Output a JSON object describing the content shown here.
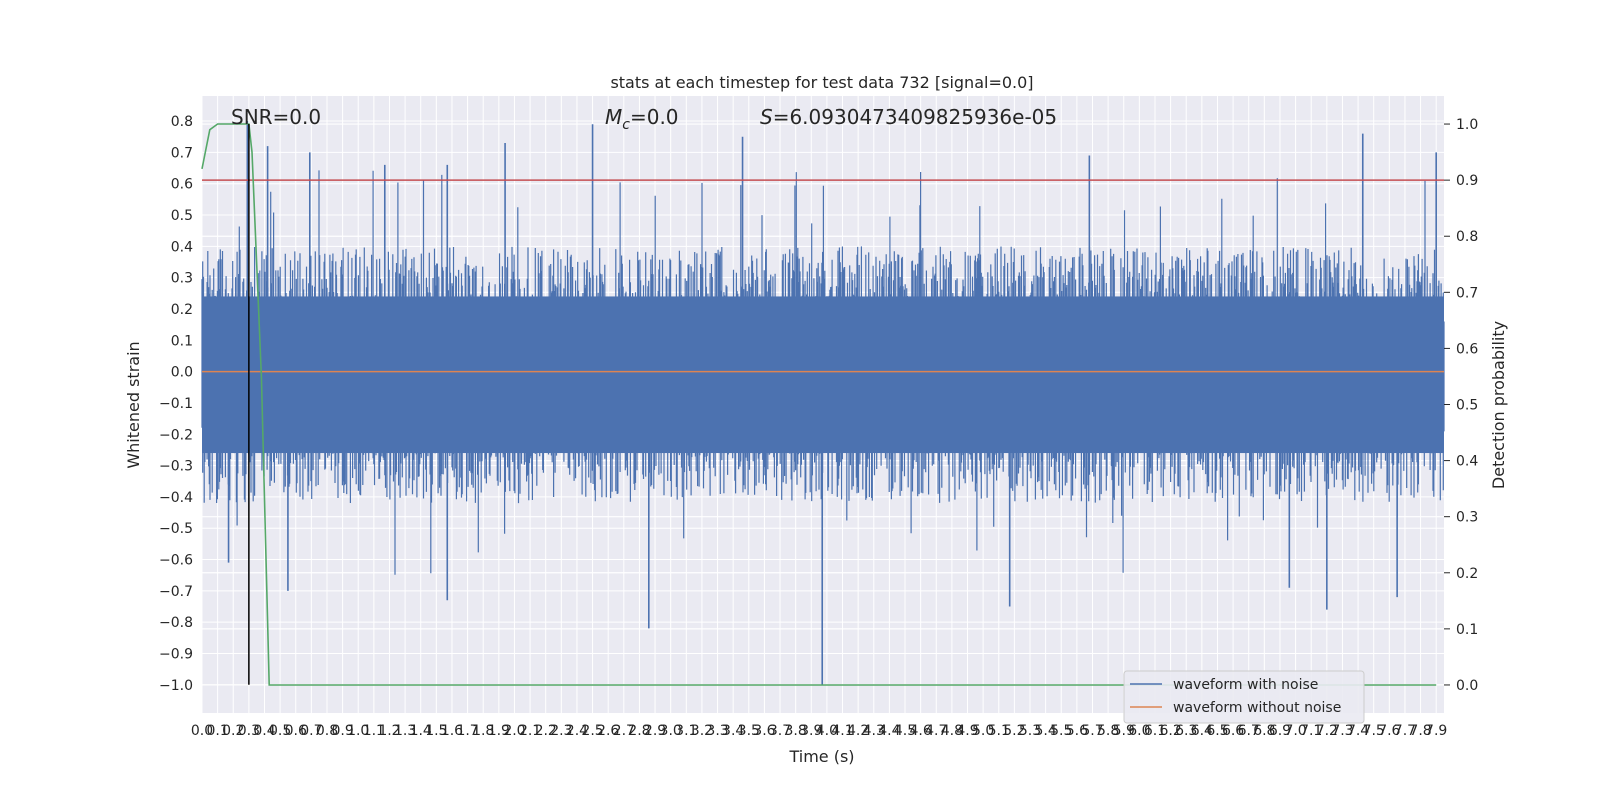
{
  "chart_data": {
    "type": "line",
    "title": "stats at each timestep for test data 732 [signal=0.0]",
    "xlabel": "Time (s)",
    "ylabel": "Whitened strain",
    "y2label": "Detection probability",
    "xlim": [
      0.0,
      7.95
    ],
    "ylim": [
      -1.09,
      0.88
    ],
    "y2lim": [
      -0.05,
      1.05
    ],
    "x_ticks": [
      "0.0",
      "0.1",
      "0.2",
      "0.3",
      "0.4",
      "0.5",
      "0.6",
      "0.7",
      "0.8",
      "0.9",
      "1.0",
      "1.1",
      "1.2",
      "1.3",
      "1.4",
      "1.5",
      "1.6",
      "1.7",
      "1.8",
      "1.9",
      "2.0",
      "2.1",
      "2.2",
      "2.3",
      "2.4",
      "2.5",
      "2.6",
      "2.7",
      "2.8",
      "2.9",
      "3.0",
      "3.1",
      "3.2",
      "3.3",
      "3.4",
      "3.5",
      "3.6",
      "3.7",
      "3.8",
      "3.9",
      "4.0",
      "4.1",
      "4.2",
      "4.3",
      "4.4",
      "4.5",
      "4.6",
      "4.7",
      "4.8",
      "4.9",
      "5.0",
      "5.1",
      "5.2",
      "5.3",
      "5.4",
      "5.5",
      "5.6",
      "5.7",
      "5.8",
      "5.9",
      "6.0",
      "6.1",
      "6.2",
      "6.3",
      "6.4",
      "6.5",
      "6.6",
      "6.7",
      "6.8",
      "6.9",
      "7.0",
      "7.1",
      "7.2",
      "7.3",
      "7.4",
      "7.5",
      "7.6",
      "7.7",
      "7.8",
      "7.9"
    ],
    "y_ticks": [
      "0.8",
      "0.7",
      "0.6",
      "0.5",
      "0.4",
      "0.3",
      "0.2",
      "0.1",
      "0.0",
      "−0.1",
      "−0.2",
      "−0.3",
      "−0.4",
      "−0.5",
      "−0.6",
      "−0.7",
      "−0.8",
      "−0.9",
      "−1.0"
    ],
    "y2_ticks": [
      "1.0",
      "0.9",
      "0.8",
      "0.7",
      "0.6",
      "0.5",
      "0.4",
      "0.3",
      "0.2",
      "0.1",
      "0.0"
    ],
    "annotations": {
      "snr": "SNR=0.0",
      "mc_symbol": "M",
      "mc_sub": "c",
      "mc_value": "=0.0",
      "s_symbol": "S",
      "s_value": "=6.0930473409825936e-05"
    },
    "threshold_y2": 0.9,
    "marker_x": 0.3,
    "grid": true,
    "legend_position": "lower-right",
    "legend": [
      "waveform with noise",
      "waveform without noise"
    ],
    "colors": {
      "noise": "#4c72b0",
      "clean": "#dd8452",
      "probability": "#55a868",
      "threshold": "#c44e52",
      "marker": "#000000",
      "background": "#eaeaf2",
      "grid": "#ffffff"
    },
    "series": [
      {
        "name": "waveform with noise",
        "description_visible": "dense noisy whitened strain, mostly within ±0.45, occasional spikes",
        "peak_points": [
          {
            "x": 0.29,
            "y": 0.8
          },
          {
            "x": 0.42,
            "y": 0.72
          },
          {
            "x": 0.69,
            "y": 0.7
          },
          {
            "x": 1.17,
            "y": 0.66
          },
          {
            "x": 1.57,
            "y": 0.66
          },
          {
            "x": 1.94,
            "y": 0.73
          },
          {
            "x": 2.5,
            "y": 0.79
          },
          {
            "x": 3.46,
            "y": 0.75
          },
          {
            "x": 5.68,
            "y": 0.69
          },
          {
            "x": 7.43,
            "y": 0.76
          },
          {
            "x": 7.9,
            "y": 0.7
          },
          {
            "x": 0.17,
            "y": -0.61
          },
          {
            "x": 0.55,
            "y": -0.7
          },
          {
            "x": 1.57,
            "y": -0.73
          },
          {
            "x": 2.86,
            "y": -0.82
          },
          {
            "x": 3.97,
            "y": -1.0
          },
          {
            "x": 5.17,
            "y": -0.75
          },
          {
            "x": 6.96,
            "y": -0.69
          },
          {
            "x": 7.2,
            "y": -0.76
          },
          {
            "x": 7.65,
            "y": -0.72
          }
        ]
      },
      {
        "name": "waveform without noise",
        "x": [
          0.0,
          7.95
        ],
        "y": [
          0.0,
          0.0
        ]
      },
      {
        "name": "detection probability",
        "axis": "right",
        "x": [
          0.0,
          0.05,
          0.1,
          0.2,
          0.3,
          0.32,
          0.38,
          0.43,
          7.9
        ],
        "y": [
          0.92,
          0.99,
          1.0,
          1.0,
          1.0,
          0.95,
          0.55,
          0.0,
          0.0
        ]
      }
    ]
  }
}
